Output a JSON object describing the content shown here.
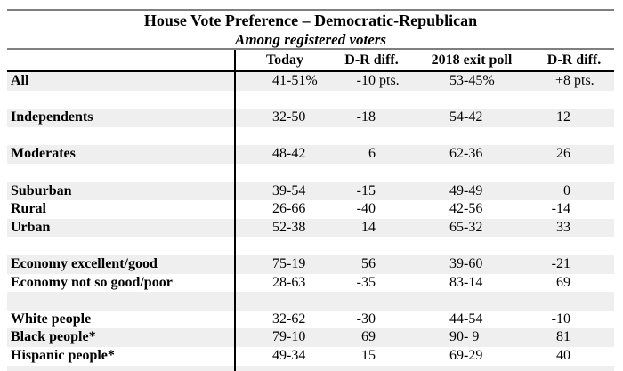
{
  "colors": {
    "row_stripe": "#EFEFEF",
    "rule_gray": "#7F7F7F",
    "rule_black": "#000000",
    "text": "#000000",
    "background": "#FFFFFF"
  },
  "chart_data": {
    "type": "table",
    "title": "House Vote Preference – Democratic-Republican",
    "subtitle": "Among registered voters",
    "columns": [
      "",
      "Today",
      "D-R diff.",
      "2018 exit poll",
      "D-R diff."
    ],
    "units": {
      "vote_pair": "%",
      "difference": "pts."
    },
    "rows": [
      {
        "label": "All",
        "today": "41-51",
        "today_suffix": "%",
        "dr_diff_today": "-10",
        "dr_diff_today_suffix": " pts.",
        "exit_poll_2018": "53-45",
        "exit_poll_2018_suffix": "%",
        "dr_diff_2018": "+8",
        "dr_diff_2018_suffix": " pts."
      },
      {
        "label": ""
      },
      {
        "label": "Independents",
        "today": "32-50",
        "dr_diff_today": "-18",
        "exit_poll_2018": "54-42",
        "dr_diff_2018": "12"
      },
      {
        "label": ""
      },
      {
        "label": "Moderates",
        "today": "48-42",
        "dr_diff_today": "6",
        "exit_poll_2018": "62-36",
        "dr_diff_2018": "26"
      },
      {
        "label": ""
      },
      {
        "label": "Suburban",
        "today": "39-54",
        "dr_diff_today": "-15",
        "exit_poll_2018": "49-49",
        "dr_diff_2018": "0"
      },
      {
        "label": "Rural",
        "today": "26-66",
        "dr_diff_today": "-40",
        "exit_poll_2018": "42-56",
        "dr_diff_2018": "-14"
      },
      {
        "label": "Urban",
        "today": "52-38",
        "dr_diff_today": "14",
        "exit_poll_2018": "65-32",
        "dr_diff_2018": "33"
      },
      {
        "label": ""
      },
      {
        "label": "Economy excellent/good",
        "today": "75-19",
        "dr_diff_today": "56",
        "exit_poll_2018": "39-60",
        "dr_diff_2018": "-21"
      },
      {
        "label": "Economy not so good/poor",
        "today": "28-63",
        "dr_diff_today": "-35",
        "exit_poll_2018": "83-14",
        "dr_diff_2018": "69"
      },
      {
        "label": ""
      },
      {
        "label": "White people",
        "today": "32-62",
        "dr_diff_today": "-30",
        "exit_poll_2018": "44-54",
        "dr_diff_2018": "-10"
      },
      {
        "label": "Black people*",
        "today": "79-10",
        "dr_diff_today": "69",
        "exit_poll_2018": "90- 9",
        "dr_diff_2018": "81"
      },
      {
        "label": "Hispanic people*",
        "today": "49-34",
        "dr_diff_today": "15",
        "exit_poll_2018": "69-29",
        "dr_diff_2018": "40"
      },
      {
        "label": ""
      }
    ]
  }
}
